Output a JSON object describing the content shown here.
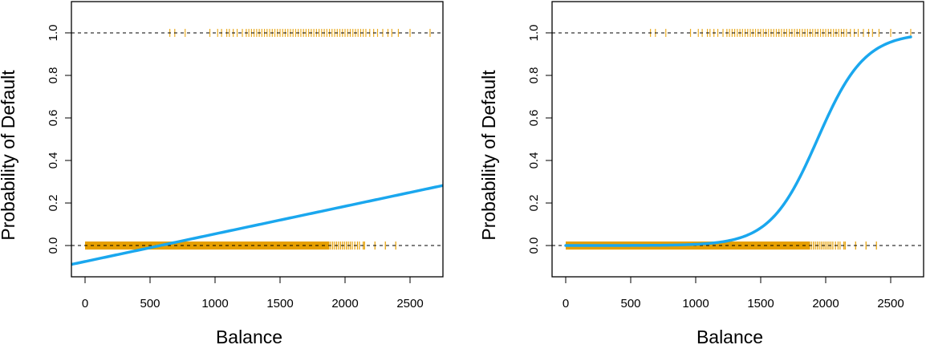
{
  "chart_data": [
    {
      "type": "line",
      "model": "linear",
      "xlabel": "Balance",
      "ylabel": "Probability of Default",
      "xlim": [
        -105,
        2753
      ],
      "ylim": [
        -0.147,
        1.147
      ],
      "xticks": [
        0,
        500,
        1000,
        1500,
        2000,
        2500
      ],
      "xtick_labels": [
        "0",
        "500",
        "1000",
        "1500",
        "2000",
        "2500"
      ],
      "yticks": [
        0,
        0.2,
        0.4,
        0.6,
        0.8,
        1
      ],
      "ytick_labels": [
        "0.0",
        "0.2",
        "0.4",
        "0.6",
        "0.8",
        "1.0"
      ],
      "reference_lines": [
        0,
        1
      ],
      "fit": {
        "intercept": -0.0752,
        "slope": 0.0001299,
        "x_range": [
          -105,
          2753
        ],
        "color": "#1aa7ee"
      },
      "rug_color": "#e69f00",
      "no_default_dense_range": [
        0,
        1880
      ],
      "no_default_sparse": [
        1890,
        1905,
        1920,
        1935,
        1950,
        1965,
        1980,
        1995,
        2010,
        2025,
        2040,
        2055,
        2075,
        2095,
        2110,
        2140,
        2150,
        2230,
        2310,
        2390
      ],
      "default_balances": [
        652,
        690,
        770,
        960,
        1020,
        1050,
        1090,
        1110,
        1140,
        1170,
        1210,
        1240,
        1260,
        1280,
        1300,
        1320,
        1340,
        1360,
        1380,
        1400,
        1420,
        1440,
        1460,
        1480,
        1500,
        1520,
        1540,
        1560,
        1580,
        1600,
        1620,
        1640,
        1660,
        1680,
        1700,
        1720,
        1740,
        1760,
        1780,
        1800,
        1820,
        1840,
        1860,
        1880,
        1900,
        1920,
        1940,
        1960,
        1980,
        2000,
        2020,
        2040,
        2060,
        2080,
        2100,
        2120,
        2140,
        2160,
        2190,
        2220,
        2250,
        2290,
        2330,
        2360,
        2410,
        2500,
        2654
      ]
    },
    {
      "type": "line",
      "model": "logistic",
      "xlabel": "Balance",
      "ylabel": "Probability of Default",
      "xlim": [
        -105,
        2753
      ],
      "ylim": [
        -0.147,
        1.147
      ],
      "xticks": [
        0,
        500,
        1000,
        1500,
        2000,
        2500
      ],
      "xtick_labels": [
        "0",
        "500",
        "1000",
        "1500",
        "2000",
        "2500"
      ],
      "yticks": [
        0,
        0.2,
        0.4,
        0.6,
        0.8,
        1
      ],
      "ytick_labels": [
        "0.0",
        "0.2",
        "0.4",
        "0.6",
        "0.8",
        "1.0"
      ],
      "reference_lines": [
        0,
        1
      ],
      "fit": {
        "intercept": -10.6513,
        "slope": 0.005499,
        "x_range": [
          0,
          2654
        ],
        "color": "#1aa7ee"
      },
      "rug_color": "#e69f00",
      "no_default_dense_range": [
        0,
        1880
      ],
      "no_default_sparse": [
        1890,
        1905,
        1920,
        1935,
        1950,
        1965,
        1980,
        1995,
        2010,
        2025,
        2040,
        2055,
        2075,
        2095,
        2110,
        2140,
        2150,
        2230,
        2310,
        2390
      ],
      "default_balances": [
        652,
        690,
        770,
        960,
        1020,
        1050,
        1090,
        1110,
        1140,
        1170,
        1210,
        1240,
        1260,
        1280,
        1300,
        1320,
        1340,
        1360,
        1380,
        1400,
        1420,
        1440,
        1460,
        1480,
        1500,
        1520,
        1540,
        1560,
        1580,
        1600,
        1620,
        1640,
        1660,
        1680,
        1700,
        1720,
        1740,
        1760,
        1780,
        1800,
        1820,
        1840,
        1860,
        1880,
        1900,
        1920,
        1940,
        1960,
        1980,
        2000,
        2020,
        2040,
        2060,
        2080,
        2100,
        2120,
        2140,
        2160,
        2190,
        2220,
        2250,
        2290,
        2330,
        2360,
        2410,
        2500,
        2654
      ]
    }
  ]
}
